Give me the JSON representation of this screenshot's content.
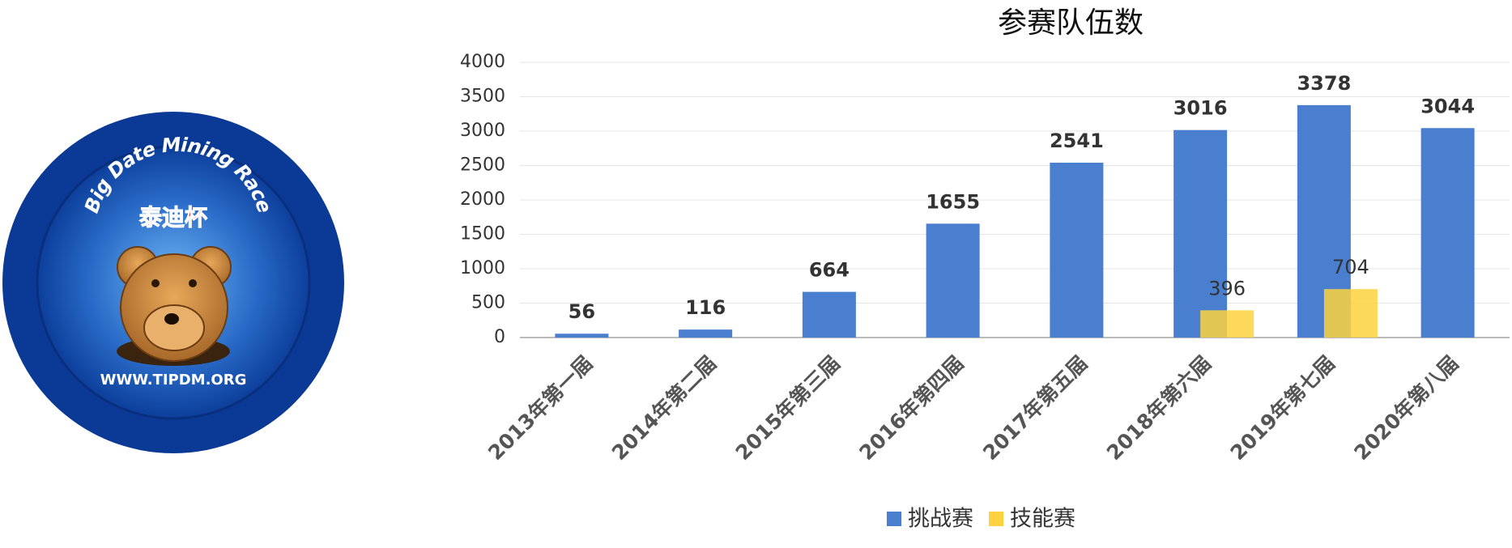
{
  "logo": {
    "arc_text": "Big Date Mining Race",
    "name": "泰迪杯",
    "url": "WWW.TIPDM.ORG"
  },
  "chart_data": {
    "type": "bar",
    "title": "参赛队伍数",
    "categories": [
      "2013年第一届",
      "2014年第二届",
      "2015年第三届",
      "2016年第四届",
      "2017年第五届",
      "2018年第六届",
      "2019年第七届",
      "2020年第八届"
    ],
    "series": [
      {
        "name": "挑战赛",
        "color": "#4a7fd0",
        "values": [
          56,
          116,
          664,
          1655,
          2541,
          3016,
          3378,
          3044
        ]
      },
      {
        "name": "技能赛",
        "color": "#fdd23e",
        "values": [
          null,
          null,
          null,
          null,
          null,
          396,
          704,
          null
        ]
      }
    ],
    "ylim": [
      0,
      4000
    ],
    "yticks": [
      0,
      500,
      1000,
      1500,
      2000,
      2500,
      3000,
      3500,
      4000
    ],
    "grid": true,
    "legend": "bottom"
  }
}
